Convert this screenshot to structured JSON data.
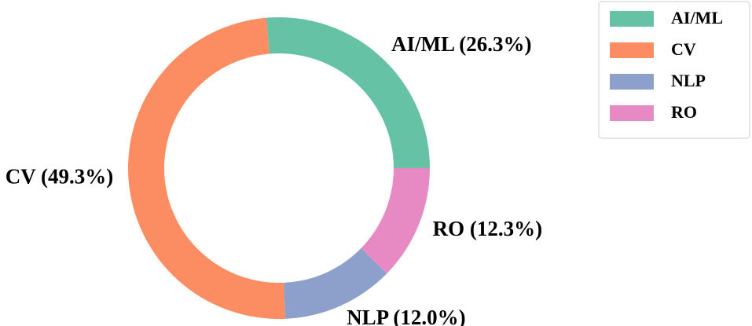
{
  "chart_data": {
    "type": "donut",
    "categories": [
      "AI/ML",
      "CV",
      "NLP",
      "RO"
    ],
    "values": [
      26.3,
      49.3,
      12.0,
      12.3
    ],
    "value_labels": [
      "AI/ML (26.3%)",
      "CV (49.3%)",
      "NLP (12.0%)",
      "RO (12.3%)"
    ],
    "colors": [
      "#66c2a5",
      "#fc8d62",
      "#8da0cb",
      "#e78ac3"
    ],
    "legend": "upper right"
  }
}
